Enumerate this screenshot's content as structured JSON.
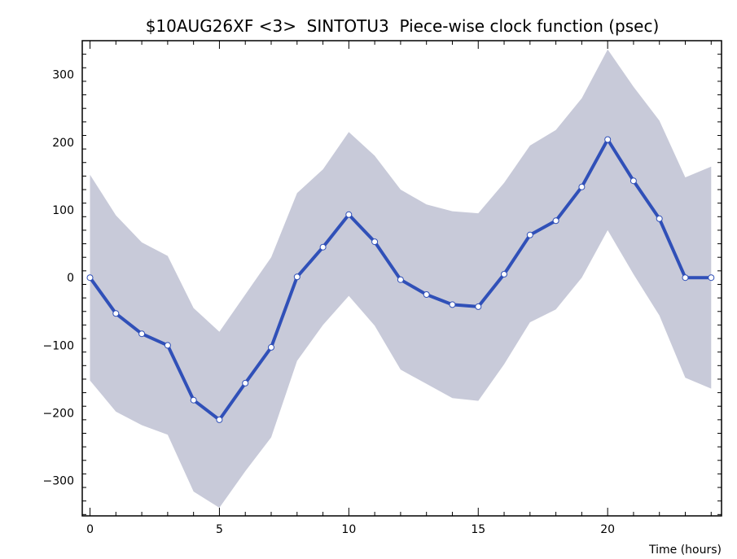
{
  "chart_data": {
    "type": "line",
    "title": "$10AUG26XF <3>  SINTOTU3  Piece-wise clock function (psec)",
    "xlabel": "Time (hours)",
    "ylabel": "",
    "xlim": [
      -0.3,
      24.4
    ],
    "ylim": [
      -352,
      350
    ],
    "x_ticks": [
      0,
      5,
      10,
      15,
      20
    ],
    "y_ticks": [
      -300,
      -200,
      -100,
      0,
      100,
      200,
      300
    ],
    "grid": false,
    "colors": {
      "line": "#3050b8",
      "band": "#c8cad9",
      "marker_fill": "#ffffff"
    },
    "series": [
      {
        "x": [
          0,
          1,
          2,
          3,
          4,
          5,
          6,
          7,
          8,
          9,
          10,
          11,
          12,
          13,
          14,
          15,
          16,
          17,
          18,
          19,
          20,
          21,
          22,
          23,
          24
        ],
        "values": [
          0,
          -53,
          -83,
          -100,
          -181,
          -210,
          -156,
          -103,
          1,
          45,
          93,
          53,
          -3,
          -25,
          -40,
          -43,
          5,
          63,
          84,
          134,
          204,
          143,
          87,
          0,
          0
        ],
        "upper": [
          152,
          92,
          52,
          32,
          -45,
          -80,
          -25,
          30,
          125,
          160,
          215,
          180,
          130,
          108,
          98,
          95,
          140,
          195,
          218,
          265,
          337,
          282,
          232,
          148,
          164
        ],
        "lower": [
          -152,
          -198,
          -218,
          -232,
          -316,
          -340,
          -286,
          -236,
          -123,
          -70,
          -27,
          -71,
          -136,
          -157,
          -178,
          -182,
          -128,
          -66,
          -47,
          0,
          70,
          5,
          -56,
          -148,
          -164
        ]
      }
    ]
  }
}
